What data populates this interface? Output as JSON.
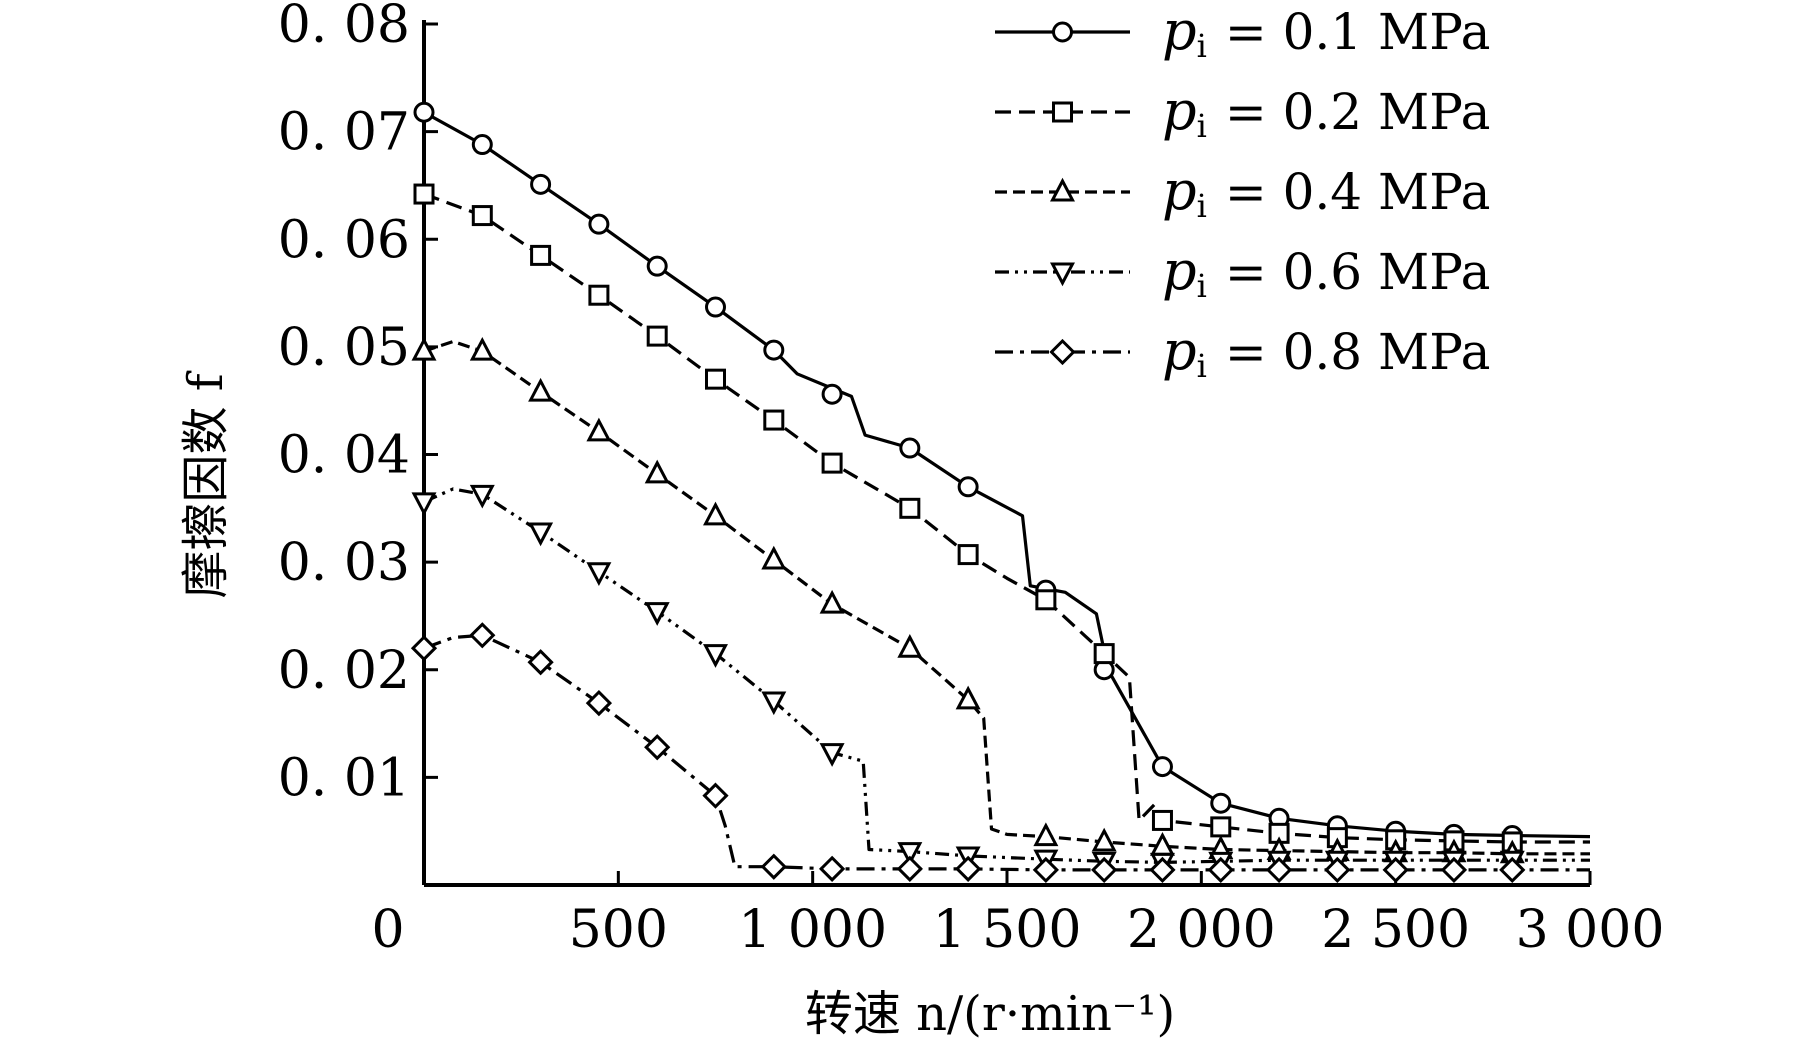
{
  "chart_data": {
    "type": "line",
    "xlabel": "转速 n/(r·min⁻¹)",
    "ylabel": "摩擦因数 f",
    "xlim": [
      0,
      3000
    ],
    "ylim": [
      0,
      0.08
    ],
    "xticks": [
      0,
      500,
      1000,
      1500,
      2000,
      2500,
      3000
    ],
    "xtick_labels": [
      "0",
      "500",
      "1 000",
      "1 500",
      "2 000",
      "2 500",
      "3 000"
    ],
    "yticks": [
      0.01,
      0.02,
      0.03,
      0.04,
      0.05,
      0.06,
      0.07,
      0.08
    ],
    "ytick_labels": [
      "0. 01",
      "0. 02",
      "0. 03",
      "0. 04",
      "0. 05",
      "0. 06",
      "0. 07",
      "0. 08"
    ],
    "grid": false,
    "legend_position": "top-right",
    "series": [
      {
        "name": "p_i = 0.1 MPa",
        "legend": {
          "symbol": "p",
          "subscript": "i",
          "text": "= 0.1 MPa"
        },
        "marker": "circle",
        "dash": "solid",
        "line": [
          [
            0,
            0.0718
          ],
          [
            150,
            0.0688
          ],
          [
            300,
            0.0651
          ],
          [
            450,
            0.0614
          ],
          [
            600,
            0.0575
          ],
          [
            750,
            0.0537
          ],
          [
            900,
            0.0497
          ],
          [
            960,
            0.0475
          ],
          [
            1100,
            0.0454
          ],
          [
            1135,
            0.0418
          ],
          [
            1250,
            0.0406
          ],
          [
            1400,
            0.037
          ],
          [
            1540,
            0.0343
          ],
          [
            1560,
            0.0278
          ],
          [
            1650,
            0.0272
          ],
          [
            1730,
            0.0252
          ],
          [
            1760,
            0.02
          ],
          [
            1900,
            0.011
          ],
          [
            2050,
            0.0076
          ],
          [
            2200,
            0.0062
          ],
          [
            2350,
            0.0055
          ],
          [
            2500,
            0.005
          ],
          [
            2650,
            0.0047
          ],
          [
            2800,
            0.0046
          ],
          [
            3000,
            0.0045
          ]
        ],
        "markers": [
          [
            0,
            0.0718
          ],
          [
            150,
            0.0688
          ],
          [
            300,
            0.0651
          ],
          [
            450,
            0.0614
          ],
          [
            600,
            0.0575
          ],
          [
            750,
            0.0537
          ],
          [
            900,
            0.0497
          ],
          [
            1050,
            0.0456
          ],
          [
            1250,
            0.0406
          ],
          [
            1400,
            0.037
          ],
          [
            1600,
            0.0274
          ],
          [
            1750,
            0.02
          ],
          [
            1900,
            0.011
          ],
          [
            2050,
            0.0076
          ],
          [
            2200,
            0.0062
          ],
          [
            2350,
            0.0055
          ],
          [
            2500,
            0.005
          ],
          [
            2650,
            0.0047
          ],
          [
            2800,
            0.0046
          ]
        ]
      },
      {
        "name": "p_i = 0.2 MPa",
        "legend": {
          "symbol": "p",
          "subscript": "i",
          "text": "= 0.2 MPa"
        },
        "marker": "square",
        "dash": "dash",
        "line": [
          [
            0,
            0.0642
          ],
          [
            150,
            0.0622
          ],
          [
            300,
            0.0585
          ],
          [
            450,
            0.0548
          ],
          [
            600,
            0.051
          ],
          [
            750,
            0.047
          ],
          [
            900,
            0.0432
          ],
          [
            1050,
            0.0392
          ],
          [
            1250,
            0.035
          ],
          [
            1400,
            0.0307
          ],
          [
            1500,
            0.0285
          ],
          [
            1600,
            0.0265
          ],
          [
            1750,
            0.0215
          ],
          [
            1815,
            0.0193
          ],
          [
            1840,
            0.006
          ],
          [
            1880,
            0.0075
          ],
          [
            1900,
            0.006
          ],
          [
            2050,
            0.0054
          ],
          [
            2200,
            0.0048
          ],
          [
            2350,
            0.0044
          ],
          [
            2500,
            0.0042
          ],
          [
            2650,
            0.0041
          ],
          [
            2800,
            0.004
          ],
          [
            3000,
            0.004
          ]
        ],
        "markers": [
          [
            0,
            0.0642
          ],
          [
            150,
            0.0622
          ],
          [
            300,
            0.0585
          ],
          [
            450,
            0.0548
          ],
          [
            600,
            0.051
          ],
          [
            750,
            0.047
          ],
          [
            900,
            0.0432
          ],
          [
            1050,
            0.0392
          ],
          [
            1250,
            0.035
          ],
          [
            1400,
            0.0307
          ],
          [
            1600,
            0.0265
          ],
          [
            1750,
            0.0215
          ],
          [
            1900,
            0.006
          ],
          [
            2050,
            0.0054
          ],
          [
            2200,
            0.0048
          ],
          [
            2350,
            0.0044
          ],
          [
            2500,
            0.0042
          ],
          [
            2650,
            0.0041
          ],
          [
            2800,
            0.004
          ]
        ]
      },
      {
        "name": "p_i = 0.4 MPa",
        "legend": {
          "symbol": "p",
          "subscript": "i",
          "text": "= 0.4 MPa"
        },
        "marker": "triangle-up",
        "dash": "dash-fine",
        "line": [
          [
            0,
            0.0496
          ],
          [
            75,
            0.0505
          ],
          [
            150,
            0.0496
          ],
          [
            300,
            0.0458
          ],
          [
            450,
            0.0421
          ],
          [
            600,
            0.0382
          ],
          [
            750,
            0.0343
          ],
          [
            900,
            0.0302
          ],
          [
            1050,
            0.0261
          ],
          [
            1250,
            0.022
          ],
          [
            1400,
            0.0172
          ],
          [
            1440,
            0.0155
          ],
          [
            1460,
            0.0052
          ],
          [
            1500,
            0.0047
          ],
          [
            1600,
            0.0045
          ],
          [
            1750,
            0.004
          ],
          [
            1900,
            0.0036
          ],
          [
            2050,
            0.0033
          ],
          [
            2200,
            0.0032
          ],
          [
            2350,
            0.0031
          ],
          [
            2500,
            0.003
          ],
          [
            2650,
            0.003
          ],
          [
            2800,
            0.0029
          ],
          [
            3000,
            0.0029
          ]
        ],
        "markers": [
          [
            0,
            0.0496
          ],
          [
            150,
            0.0496
          ],
          [
            300,
            0.0458
          ],
          [
            450,
            0.0421
          ],
          [
            600,
            0.0382
          ],
          [
            750,
            0.0343
          ],
          [
            900,
            0.0302
          ],
          [
            1050,
            0.0261
          ],
          [
            1250,
            0.022
          ],
          [
            1400,
            0.0172
          ],
          [
            1600,
            0.0045
          ],
          [
            1750,
            0.004
          ],
          [
            1900,
            0.0036
          ],
          [
            2050,
            0.0033
          ],
          [
            2200,
            0.0032
          ],
          [
            2350,
            0.0031
          ],
          [
            2500,
            0.003
          ],
          [
            2650,
            0.003
          ],
          [
            2800,
            0.0029
          ]
        ]
      },
      {
        "name": "p_i = 0.6 MPa",
        "legend": {
          "symbol": "p",
          "subscript": "i",
          "text": "= 0.6 MPa"
        },
        "marker": "triangle-down",
        "dash": "dash-dot-dot",
        "line": [
          [
            0,
            0.0356
          ],
          [
            75,
            0.0368
          ],
          [
            150,
            0.0363
          ],
          [
            300,
            0.0328
          ],
          [
            450,
            0.0291
          ],
          [
            600,
            0.0254
          ],
          [
            750,
            0.0215
          ],
          [
            900,
            0.0171
          ],
          [
            1050,
            0.0123
          ],
          [
            1130,
            0.0115
          ],
          [
            1145,
            0.0033
          ],
          [
            1250,
            0.0031
          ],
          [
            1400,
            0.0027
          ],
          [
            1600,
            0.0024
          ],
          [
            1750,
            0.0022
          ],
          [
            1900,
            0.0021
          ],
          [
            2050,
            0.0022
          ],
          [
            2200,
            0.0023
          ],
          [
            2350,
            0.0023
          ],
          [
            2500,
            0.0023
          ],
          [
            2650,
            0.0023
          ],
          [
            2800,
            0.0023
          ],
          [
            3000,
            0.0023
          ]
        ],
        "markers": [
          [
            0,
            0.0356
          ],
          [
            150,
            0.0363
          ],
          [
            300,
            0.0328
          ],
          [
            450,
            0.0291
          ],
          [
            600,
            0.0254
          ],
          [
            750,
            0.0215
          ],
          [
            900,
            0.0171
          ],
          [
            1050,
            0.0123
          ],
          [
            1250,
            0.0031
          ],
          [
            1400,
            0.0027
          ],
          [
            1600,
            0.0024
          ],
          [
            1750,
            0.0022
          ],
          [
            1900,
            0.0021
          ],
          [
            2050,
            0.0022
          ],
          [
            2200,
            0.0023
          ],
          [
            2350,
            0.0023
          ],
          [
            2500,
            0.0023
          ],
          [
            2650,
            0.0023
          ],
          [
            2800,
            0.0023
          ]
        ]
      },
      {
        "name": "p_i = 0.8 MPa",
        "legend": {
          "symbol": "p",
          "subscript": "i",
          "text": "= 0.8 MPa"
        },
        "marker": "diamond",
        "dash": "dash-dot",
        "line": [
          [
            0,
            0.022
          ],
          [
            75,
            0.023
          ],
          [
            150,
            0.0232
          ],
          [
            300,
            0.0207
          ],
          [
            450,
            0.0169
          ],
          [
            600,
            0.0128
          ],
          [
            750,
            0.0083
          ],
          [
            775,
            0.0055
          ],
          [
            800,
            0.0017
          ],
          [
            900,
            0.0017
          ],
          [
            1050,
            0.0015
          ],
          [
            1250,
            0.0015
          ],
          [
            1400,
            0.0015
          ],
          [
            1600,
            0.0014
          ],
          [
            1750,
            0.0014
          ],
          [
            1900,
            0.0014
          ],
          [
            2050,
            0.0014
          ],
          [
            2200,
            0.0014
          ],
          [
            2350,
            0.0014
          ],
          [
            2500,
            0.0014
          ],
          [
            2650,
            0.0014
          ],
          [
            2800,
            0.0014
          ],
          [
            3000,
            0.0014
          ]
        ],
        "markers": [
          [
            0,
            0.022
          ],
          [
            150,
            0.0232
          ],
          [
            300,
            0.0207
          ],
          [
            450,
            0.0169
          ],
          [
            600,
            0.0128
          ],
          [
            750,
            0.0083
          ],
          [
            900,
            0.0017
          ],
          [
            1050,
            0.0015
          ],
          [
            1250,
            0.0015
          ],
          [
            1400,
            0.0015
          ],
          [
            1600,
            0.0014
          ],
          [
            1750,
            0.0014
          ],
          [
            1900,
            0.0014
          ],
          [
            2050,
            0.0014
          ],
          [
            2200,
            0.0014
          ],
          [
            2350,
            0.0014
          ],
          [
            2500,
            0.0014
          ],
          [
            2650,
            0.0014
          ],
          [
            2800,
            0.0014
          ]
        ]
      }
    ]
  }
}
